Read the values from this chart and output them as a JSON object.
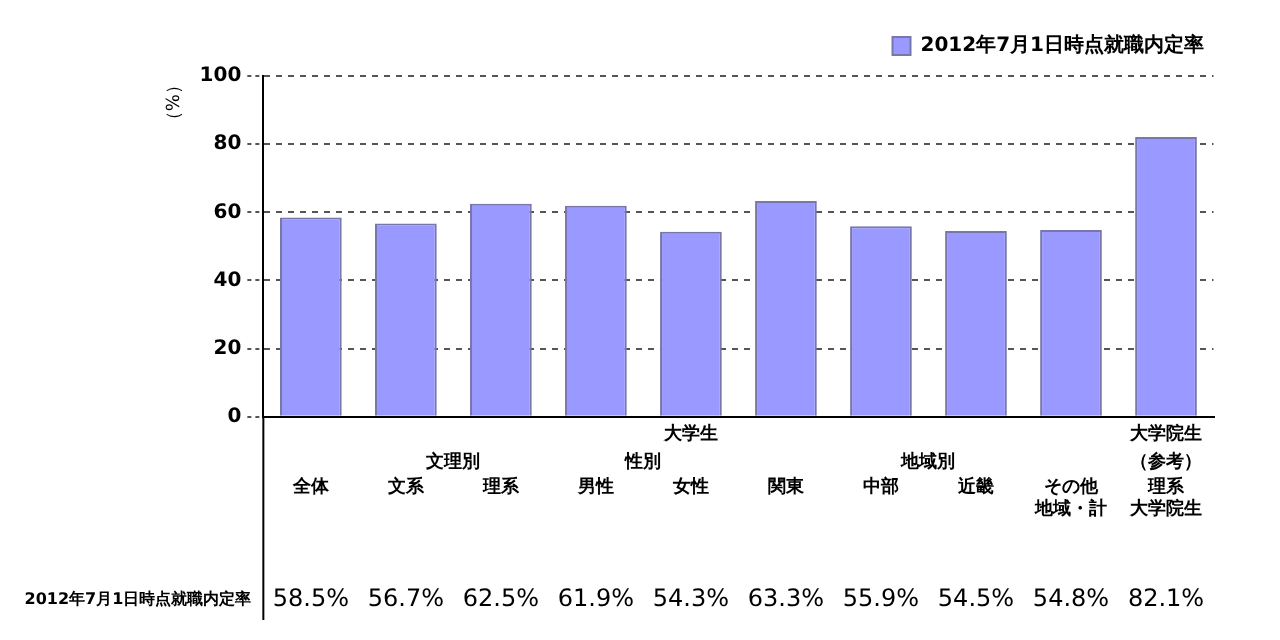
{
  "chart_data": {
    "type": "bar",
    "ylabel": "（%）",
    "categories": [
      "全体",
      "文系",
      "理系",
      "男性",
      "女性",
      "関東",
      "中部",
      "近畿",
      "その他地域・計",
      "理系大学院生"
    ],
    "series": [
      {
        "name": "2012年7月1日時点就職内定率",
        "color": "#9999ff",
        "values": [
          58.5,
          56.7,
          62.5,
          61.9,
          54.3,
          63.3,
          55.9,
          54.5,
          54.8,
          82.1
        ],
        "value_labels": [
          "58.5%",
          "56.7%",
          "62.5%",
          "61.9%",
          "54.3%",
          "63.3%",
          "55.9%",
          "54.5%",
          "54.8%",
          "82.1%"
        ]
      }
    ],
    "ylim": [
      0,
      100
    ],
    "yticks": [
      0,
      20,
      40,
      60,
      80,
      100
    ],
    "grid": "y",
    "legend": "top right",
    "annotations": [
      "大学生",
      "大学院生",
      "文理別",
      "性別",
      "地域別",
      "（参考）"
    ]
  }
}
